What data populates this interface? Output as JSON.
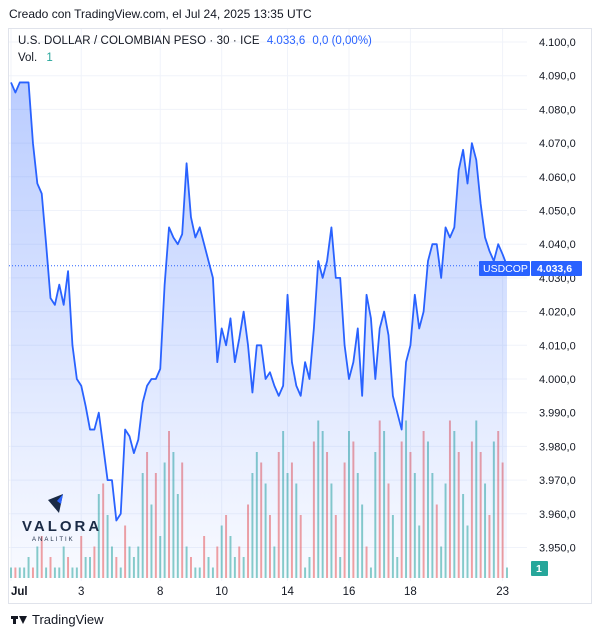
{
  "header": {
    "credit": "Creado con TradingView.com, el Jul 24, 2025 13:35 UTC"
  },
  "legend": {
    "symbol": "U.S. DOLLAR / COLOMBIAN PESO · 30 · ICE",
    "last": "4.033,6",
    "change": "0,0 (0,00%)",
    "vol_label": "Vol.",
    "vol_value": "1"
  },
  "price_label": {
    "ticker": "USDCOP",
    "value": "4.033,6"
  },
  "vol_badge": "1",
  "watermark": {
    "brand": "VALORA",
    "sub": "ANALITIK"
  },
  "footer": {
    "brand": "TradingView"
  },
  "colors": {
    "line": "#2962ff",
    "fill": "#2962ff",
    "vol_up": "#26a69a",
    "vol_down": "#ef5350",
    "grid": "#f0f3fa"
  },
  "chart_data": {
    "type": "area",
    "title": "U.S. DOLLAR / COLOMBIAN PESO · 30 · ICE",
    "ylim": [
      3945,
      4105
    ],
    "y_ticks": [
      3950,
      3960,
      3970,
      3980,
      3990,
      4000,
      4010,
      4020,
      4030,
      4040,
      4050,
      4060,
      4070,
      4080,
      4090,
      4100
    ],
    "y_tick_labels": [
      "3.950,0",
      "3.960,0",
      "3.970,0",
      "3.980,0",
      "3.990,0",
      "4.000,0",
      "4.010,0",
      "4.020,0",
      "4.030,0",
      "4.040,0",
      "4.050,0",
      "4.060,0",
      "4.070,0",
      "4.080,0",
      "4.090,0",
      "4.100,0"
    ],
    "x_ticks": [
      {
        "i": 0,
        "label": "Jul"
      },
      {
        "i": 16,
        "label": "3"
      },
      {
        "i": 34,
        "label": "8"
      },
      {
        "i": 48,
        "label": "10"
      },
      {
        "i": 63,
        "label": "14"
      },
      {
        "i": 77,
        "label": "16"
      },
      {
        "i": 91,
        "label": "18"
      },
      {
        "i": 112,
        "label": "23"
      }
    ],
    "grid": true,
    "last_value": 4033.6,
    "series": [
      {
        "values": [
          4088,
          4085,
          4088,
          4088,
          4088,
          4070,
          4058,
          4055,
          4040,
          4024,
          4022,
          4028,
          4022,
          4032,
          4010,
          4000,
          3998,
          3992,
          3985,
          3985,
          3990,
          3980,
          3970,
          3970,
          3958,
          3960,
          3985,
          3983,
          3978,
          3982,
          3993,
          3998,
          4000,
          4000,
          4003,
          4028,
          4045,
          4042,
          4040,
          4043,
          4064,
          4048,
          4042,
          4045,
          4040,
          4035,
          4030,
          4005,
          4015,
          4010,
          4018,
          4005,
          4012,
          4020,
          4010,
          3996,
          4010,
          4010,
          4000,
          4002,
          3998,
          3995,
          3998,
          4025,
          4005,
          3998,
          3995,
          4005,
          4000,
          4015,
          4035,
          4030,
          4035,
          4045,
          4030,
          4030,
          4010,
          4000,
          4005,
          4015,
          3995,
          4025,
          4018,
          4000,
          4015,
          4020,
          4013,
          3995,
          3990,
          3985,
          4005,
          4010,
          4025,
          4015,
          4020,
          4035,
          4040,
          4040,
          4030,
          4045,
          4042,
          4045,
          4062,
          4068,
          4058,
          4070,
          4065,
          4052,
          4042,
          4038,
          4035,
          4040,
          4037,
          4033.6
        ]
      }
    ],
    "volume": [
      {
        "v": 1,
        "up": true
      },
      {
        "v": 1,
        "up": false
      },
      {
        "v": 1,
        "up": true
      },
      {
        "v": 1,
        "up": true
      },
      {
        "v": 2,
        "up": true
      },
      {
        "v": 1,
        "up": false
      },
      {
        "v": 3,
        "up": true
      },
      {
        "v": 4,
        "up": false
      },
      {
        "v": 1,
        "up": true
      },
      {
        "v": 2,
        "up": false
      },
      {
        "v": 1,
        "up": true
      },
      {
        "v": 1,
        "up": true
      },
      {
        "v": 3,
        "up": true
      },
      {
        "v": 2,
        "up": false
      },
      {
        "v": 1,
        "up": true
      },
      {
        "v": 1,
        "up": true
      },
      {
        "v": 4,
        "up": false
      },
      {
        "v": 2,
        "up": true
      },
      {
        "v": 2,
        "up": true
      },
      {
        "v": 3,
        "up": false
      },
      {
        "v": 8,
        "up": true
      },
      {
        "v": 9,
        "up": false
      },
      {
        "v": 6,
        "up": true
      },
      {
        "v": 3,
        "up": true
      },
      {
        "v": 2,
        "up": false
      },
      {
        "v": 1,
        "up": true
      },
      {
        "v": 5,
        "up": false
      },
      {
        "v": 3,
        "up": true
      },
      {
        "v": 2,
        "up": true
      },
      {
        "v": 3,
        "up": true
      },
      {
        "v": 10,
        "up": true
      },
      {
        "v": 12,
        "up": false
      },
      {
        "v": 7,
        "up": true
      },
      {
        "v": 10,
        "up": false
      },
      {
        "v": 4,
        "up": true
      },
      {
        "v": 11,
        "up": true
      },
      {
        "v": 14,
        "up": false
      },
      {
        "v": 12,
        "up": true
      },
      {
        "v": 8,
        "up": true
      },
      {
        "v": 11,
        "up": false
      },
      {
        "v": 3,
        "up": true
      },
      {
        "v": 2,
        "up": false
      },
      {
        "v": 1,
        "up": true
      },
      {
        "v": 1,
        "up": true
      },
      {
        "v": 4,
        "up": false
      },
      {
        "v": 2,
        "up": true
      },
      {
        "v": 1,
        "up": true
      },
      {
        "v": 3,
        "up": false
      },
      {
        "v": 5,
        "up": true
      },
      {
        "v": 6,
        "up": false
      },
      {
        "v": 4,
        "up": true
      },
      {
        "v": 2,
        "up": true
      },
      {
        "v": 3,
        "up": false
      },
      {
        "v": 2,
        "up": true
      },
      {
        "v": 7,
        "up": false
      },
      {
        "v": 10,
        "up": true
      },
      {
        "v": 12,
        "up": true
      },
      {
        "v": 11,
        "up": false
      },
      {
        "v": 9,
        "up": true
      },
      {
        "v": 6,
        "up": false
      },
      {
        "v": 3,
        "up": true
      },
      {
        "v": 12,
        "up": false
      },
      {
        "v": 14,
        "up": true
      },
      {
        "v": 10,
        "up": true
      },
      {
        "v": 11,
        "up": false
      },
      {
        "v": 9,
        "up": true
      },
      {
        "v": 6,
        "up": false
      },
      {
        "v": 1,
        "up": true
      },
      {
        "v": 2,
        "up": true
      },
      {
        "v": 13,
        "up": false
      },
      {
        "v": 15,
        "up": true
      },
      {
        "v": 14,
        "up": true
      },
      {
        "v": 12,
        "up": false
      },
      {
        "v": 9,
        "up": true
      },
      {
        "v": 6,
        "up": false
      },
      {
        "v": 2,
        "up": true
      },
      {
        "v": 11,
        "up": false
      },
      {
        "v": 14,
        "up": true
      },
      {
        "v": 13,
        "up": false
      },
      {
        "v": 10,
        "up": true
      },
      {
        "v": 7,
        "up": true
      },
      {
        "v": 3,
        "up": false
      },
      {
        "v": 1,
        "up": true
      },
      {
        "v": 12,
        "up": true
      },
      {
        "v": 15,
        "up": false
      },
      {
        "v": 14,
        "up": true
      },
      {
        "v": 9,
        "up": false
      },
      {
        "v": 6,
        "up": true
      },
      {
        "v": 2,
        "up": true
      },
      {
        "v": 13,
        "up": false
      },
      {
        "v": 15,
        "up": true
      },
      {
        "v": 12,
        "up": false
      },
      {
        "v": 10,
        "up": true
      },
      {
        "v": 5,
        "up": true
      },
      {
        "v": 14,
        "up": false
      },
      {
        "v": 13,
        "up": true
      },
      {
        "v": 10,
        "up": true
      },
      {
        "v": 7,
        "up": false
      },
      {
        "v": 3,
        "up": true
      },
      {
        "v": 9,
        "up": true
      },
      {
        "v": 15,
        "up": false
      },
      {
        "v": 14,
        "up": true
      },
      {
        "v": 12,
        "up": false
      },
      {
        "v": 8,
        "up": true
      },
      {
        "v": 5,
        "up": true
      },
      {
        "v": 13,
        "up": false
      },
      {
        "v": 15,
        "up": true
      },
      {
        "v": 12,
        "up": false
      },
      {
        "v": 9,
        "up": true
      },
      {
        "v": 6,
        "up": false
      },
      {
        "v": 13,
        "up": true
      },
      {
        "v": 14,
        "up": false
      },
      {
        "v": 11,
        "up": false
      },
      {
        "v": 1,
        "up": true
      }
    ]
  }
}
